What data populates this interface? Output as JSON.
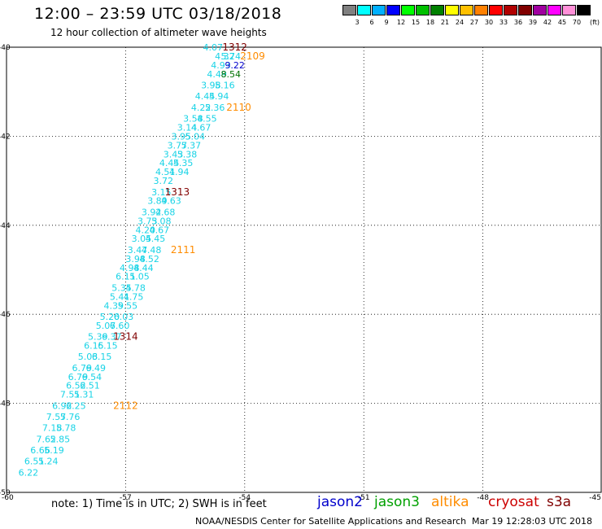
{
  "title": "12:00 – 23:59 UTC 03/18/2018",
  "subtitle": "12 hour collection of altimeter wave heights",
  "legend": {
    "unit": "(ft)",
    "colors": [
      "#808080",
      "#00ffff",
      "#00b0ff",
      "#0000ff",
      "#00ff00",
      "#00c000",
      "#008000",
      "#ffff00",
      "#ffc000",
      "#ff8000",
      "#ff0000",
      "#b00000",
      "#800000",
      "#a000a0",
      "#ff00ff",
      "#ff90d8",
      "#000000"
    ],
    "labels": [
      "3",
      "6",
      "9",
      "12",
      "15",
      "18",
      "21",
      "24",
      "27",
      "30",
      "33",
      "36",
      "39",
      "42",
      "45",
      "70"
    ]
  },
  "axes": {
    "x_ticks": [
      "-60",
      "-57",
      "-54",
      "-51",
      "-48",
      "-45"
    ],
    "y_ticks": [
      "-40",
      "-42",
      "-44",
      "-46",
      "-48",
      "-50"
    ]
  },
  "swh_values": [
    {
      "text": "4.07",
      "lat": -40.0,
      "lon": -54.8
    },
    {
      "text": "4.32",
      "lat": -40.2,
      "lon": -54.5
    },
    {
      "text": "4.93",
      "lat": -40.4,
      "lon": -54.6
    },
    {
      "text": "4.49",
      "lat": -40.6,
      "lon": -54.7
    },
    {
      "text": "3.98",
      "lat": -40.85,
      "lon": -54.85
    },
    {
      "text": "4.44",
      "lat": -41.1,
      "lon": -55.0
    },
    {
      "text": "4.22",
      "lat": -41.35,
      "lon": -55.1
    },
    {
      "text": "3.58",
      "lat": -41.6,
      "lon": -55.3
    },
    {
      "text": "3.14",
      "lat": -41.8,
      "lon": -55.45
    },
    {
      "text": "3.95",
      "lat": -42.0,
      "lon": -55.6
    },
    {
      "text": "3.77",
      "lat": -42.2,
      "lon": -55.7
    },
    {
      "text": "3.43",
      "lat": -42.4,
      "lon": -55.8
    },
    {
      "text": "4.44",
      "lat": -42.6,
      "lon": -55.9
    },
    {
      "text": "4.51",
      "lat": -42.8,
      "lon": -56.0
    },
    {
      "text": "3.72",
      "lat": -43.0,
      "lon": -56.05
    },
    {
      "text": "3.15",
      "lat": -43.25,
      "lon": -56.1
    },
    {
      "text": "3.89",
      "lat": -43.45,
      "lon": -56.2
    },
    {
      "text": "3.92",
      "lat": -43.7,
      "lon": -56.35
    },
    {
      "text": "3.73",
      "lat": -43.9,
      "lon": -56.45
    },
    {
      "text": "4.20",
      "lat": -44.1,
      "lon": -56.5
    },
    {
      "text": "3.05",
      "lat": -44.3,
      "lon": -56.6
    },
    {
      "text": "3.47",
      "lat": -44.55,
      "lon": -56.7
    },
    {
      "text": "3.98",
      "lat": -44.75,
      "lon": -56.75
    },
    {
      "text": "4.98",
      "lat": -44.95,
      "lon": -56.9
    },
    {
      "text": "6.11",
      "lat": -45.15,
      "lon": -57.0
    },
    {
      "text": "5.35",
      "lat": -45.4,
      "lon": -57.1
    },
    {
      "text": "5.41",
      "lat": -45.6,
      "lon": -57.15
    },
    {
      "text": "4.39",
      "lat": -45.8,
      "lon": -57.3
    },
    {
      "text": "5.20",
      "lat": -46.05,
      "lon": -57.4
    },
    {
      "text": "5.07",
      "lat": -46.25,
      "lon": -57.5
    },
    {
      "text": "5.39",
      "lat": -46.5,
      "lon": -57.7
    },
    {
      "text": "6.15",
      "lat": -46.7,
      "lon": -57.8
    },
    {
      "text": "5.03",
      "lat": -46.95,
      "lon": -57.95
    },
    {
      "text": "6.79",
      "lat": -47.2,
      "lon": -58.1
    },
    {
      "text": "6.79",
      "lat": -47.4,
      "lon": -58.2
    },
    {
      "text": "6.52",
      "lat": -47.6,
      "lon": -58.25
    },
    {
      "text": "7.51",
      "lat": -47.8,
      "lon": -58.4
    },
    {
      "text": "6.92",
      "lat": -48.05,
      "lon": -58.6
    },
    {
      "text": "7.57",
      "lat": -48.3,
      "lon": -58.75
    },
    {
      "text": "7.18",
      "lat": -48.55,
      "lon": -58.85
    },
    {
      "text": "7.62",
      "lat": -48.8,
      "lon": -59.0
    },
    {
      "text": "6.66",
      "lat": -49.05,
      "lon": -59.15
    },
    {
      "text": "6.51",
      "lat": -49.3,
      "lon": -59.3
    },
    {
      "text": "6.22",
      "lat": -49.55,
      "lon": -59.45
    },
    {
      "text": "5.74",
      "lat": -40.2,
      "lon": -54.35
    },
    {
      "text": "5.16",
      "lat": -40.85,
      "lon": -54.5
    },
    {
      "text": "5.94",
      "lat": -41.1,
      "lon": -54.65
    },
    {
      "text": "5.36",
      "lat": -41.35,
      "lon": -54.75
    },
    {
      "text": "4.55",
      "lat": -41.6,
      "lon": -54.95
    },
    {
      "text": "4.67",
      "lat": -41.8,
      "lon": -55.1
    },
    {
      "text": "5.04",
      "lat": -42.0,
      "lon": -55.25
    },
    {
      "text": "5.37",
      "lat": -42.2,
      "lon": -55.35
    },
    {
      "text": "5.38",
      "lat": -42.4,
      "lon": -55.45
    },
    {
      "text": "5.35",
      "lat": -42.6,
      "lon": -55.55
    },
    {
      "text": "4.94",
      "lat": -42.8,
      "lon": -55.65
    },
    {
      "text": "4.63",
      "lat": -43.45,
      "lon": -55.85
    },
    {
      "text": "4.68",
      "lat": -43.7,
      "lon": -56.0
    },
    {
      "text": "5.08",
      "lat": -43.9,
      "lon": -56.1
    },
    {
      "text": "4.67",
      "lat": -44.1,
      "lon": -56.15
    },
    {
      "text": "4.45",
      "lat": -44.3,
      "lon": -56.25
    },
    {
      "text": "4.48",
      "lat": -44.55,
      "lon": -56.35
    },
    {
      "text": "4.52",
      "lat": -44.75,
      "lon": -56.4
    },
    {
      "text": "4.44",
      "lat": -44.95,
      "lon": -56.55
    },
    {
      "text": "5.05",
      "lat": -45.15,
      "lon": -56.65
    },
    {
      "text": "4.78",
      "lat": -45.4,
      "lon": -56.75
    },
    {
      "text": "4.75",
      "lat": -45.6,
      "lon": -56.8
    },
    {
      "text": "5.55",
      "lat": -45.8,
      "lon": -56.95
    },
    {
      "text": "6.03",
      "lat": -46.05,
      "lon": -57.05
    },
    {
      "text": "6.60",
      "lat": -46.25,
      "lon": -57.15
    },
    {
      "text": "6.37",
      "lat": -46.5,
      "lon": -57.35
    },
    {
      "text": "6.15",
      "lat": -46.7,
      "lon": -57.45
    },
    {
      "text": "6.15",
      "lat": -46.95,
      "lon": -57.6
    },
    {
      "text": "6.49",
      "lat": -47.2,
      "lon": -57.75
    },
    {
      "text": "6.54",
      "lat": -47.4,
      "lon": -57.85
    },
    {
      "text": "6.51",
      "lat": -47.6,
      "lon": -57.9
    },
    {
      "text": "5.31",
      "lat": -47.8,
      "lon": -58.05
    },
    {
      "text": "6.25",
      "lat": -48.05,
      "lon": -58.25
    },
    {
      "text": "5.76",
      "lat": -48.3,
      "lon": -58.4
    },
    {
      "text": "5.78",
      "lat": -48.55,
      "lon": -58.5
    },
    {
      "text": "5.85",
      "lat": -48.8,
      "lon": -58.65
    },
    {
      "text": "5.19",
      "lat": -49.05,
      "lon": -58.8
    },
    {
      "text": "5.24",
      "lat": -49.3,
      "lon": -58.95
    }
  ],
  "jason2_values": [
    {
      "text": "9.22",
      "lat": -40.4,
      "lon": -54.25
    }
  ],
  "jason3_values": [
    {
      "text": "8.54",
      "lat": -40.6,
      "lon": -54.35
    }
  ],
  "altika_times": [
    {
      "text": "2109",
      "lat": -40.2,
      "lon": -53.8
    },
    {
      "text": "2110",
      "lat": -41.35,
      "lon": -54.15
    },
    {
      "text": "2111",
      "lat": -44.55,
      "lon": -55.55
    },
    {
      "text": "2112",
      "lat": -48.05,
      "lon": -57.0
    }
  ],
  "cryosat_times": [
    {
      "text": "1312",
      "lat": -40.0,
      "lon": -54.25
    },
    {
      "text": "1313",
      "lat": -43.25,
      "lon": -55.7
    },
    {
      "text": "1314",
      "lat": -46.5,
      "lon": -57.0
    }
  ],
  "note": "note:  1) Time is in UTC; 2) SWH is in feet",
  "satellites": [
    {
      "name": "jason2",
      "color": "#0000cc"
    },
    {
      "name": "jason3",
      "color": "#00a000"
    },
    {
      "name": "altika",
      "color": "#ff8c00"
    },
    {
      "name": "cryosat",
      "color": "#cc0000"
    },
    {
      "name": "s3a",
      "color": "#800000"
    }
  ],
  "credit": "NOAA/NESDIS Center for Satellite Applications and Research",
  "timestamp": "Mar 19 12:28:03 UTC 2018",
  "colors": {
    "swh": "#19d3e6",
    "altika": "#ff8c00",
    "cryosat": "#800000",
    "jason2": "#0000cc",
    "jason3": "#007000"
  }
}
